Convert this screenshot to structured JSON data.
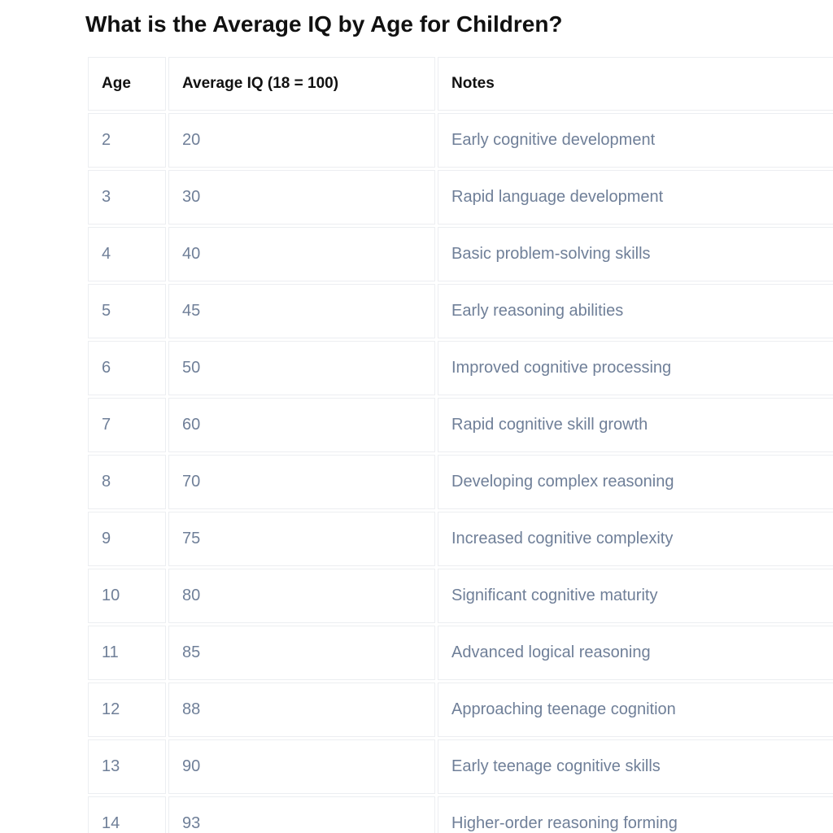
{
  "title": "What is the Average IQ by Age for Children?",
  "table": {
    "headers": {
      "age": "Age",
      "iq": "Average IQ (18 = 100)",
      "notes": "Notes"
    },
    "rows": [
      {
        "age": "2",
        "iq": "20",
        "notes": "Early cognitive development"
      },
      {
        "age": "3",
        "iq": "30",
        "notes": "Rapid language development"
      },
      {
        "age": "4",
        "iq": "40",
        "notes": "Basic problem-solving skills"
      },
      {
        "age": "5",
        "iq": "45",
        "notes": "Early reasoning abilities"
      },
      {
        "age": "6",
        "iq": "50",
        "notes": "Improved cognitive processing"
      },
      {
        "age": "7",
        "iq": "60",
        "notes": "Rapid cognitive skill growth"
      },
      {
        "age": "8",
        "iq": "70",
        "notes": "Developing complex reasoning"
      },
      {
        "age": "9",
        "iq": "75",
        "notes": "Increased cognitive complexity"
      },
      {
        "age": "10",
        "iq": "80",
        "notes": "Significant cognitive maturity"
      },
      {
        "age": "11",
        "iq": "85",
        "notes": "Advanced logical reasoning"
      },
      {
        "age": "12",
        "iq": "88",
        "notes": "Approaching teenage cognition"
      },
      {
        "age": "13",
        "iq": "90",
        "notes": "Early teenage cognitive skills"
      },
      {
        "age": "14",
        "iq": "93",
        "notes": "Higher-order reasoning forming"
      }
    ]
  },
  "colors": {
    "title_text": "#111111",
    "header_text": "#111111",
    "cell_text": "#6f7f98",
    "cell_border": "#eceef1"
  }
}
